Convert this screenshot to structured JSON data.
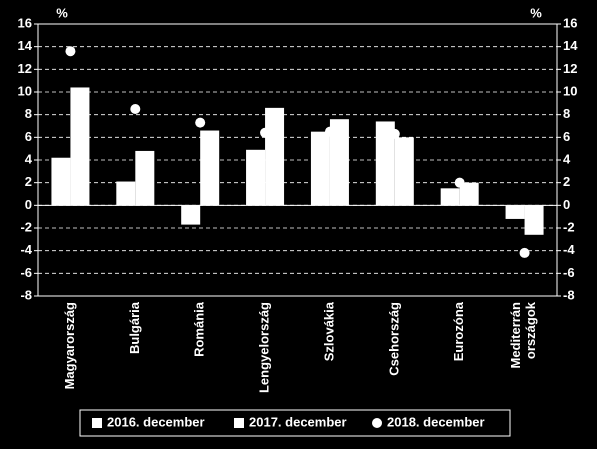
{
  "chart_data": {
    "type": "bar",
    "ylabel": "%",
    "y2label": "%",
    "categories": [
      "Magyarország",
      "Bulgária",
      "Románia",
      "Lengyelország",
      "Szlovákia",
      "Csehország",
      "Eurozóna",
      "Mediterrán országok"
    ],
    "series": [
      {
        "name": "2016. december",
        "color": "#ffffff",
        "kind": "bar",
        "values": [
          4.2,
          2.1,
          -1.7,
          4.9,
          6.5,
          7.4,
          1.5,
          -1.2
        ]
      },
      {
        "name": "2017. december",
        "color": "#ffffff",
        "kind": "bar",
        "values": [
          10.4,
          4.8,
          6.6,
          8.6,
          7.6,
          6.0,
          2.0,
          -2.6
        ]
      },
      {
        "name": "2018. december",
        "color": "#ffffff",
        "kind": "dot",
        "values": [
          13.6,
          8.5,
          7.3,
          6.4,
          6.5,
          6.3,
          2.0,
          -4.2
        ]
      }
    ],
    "ylim": [
      -8,
      16
    ],
    "yticks": [
      -8,
      -6,
      -4,
      -2,
      0,
      2,
      4,
      6,
      8,
      10,
      12,
      14,
      16
    ],
    "y2lim": [
      -8,
      16
    ],
    "y2ticks": [
      -8,
      -6,
      -4,
      -2,
      0,
      2,
      4,
      6,
      8,
      10,
      12,
      14,
      16
    ],
    "grid": true,
    "legend": "bottom"
  }
}
